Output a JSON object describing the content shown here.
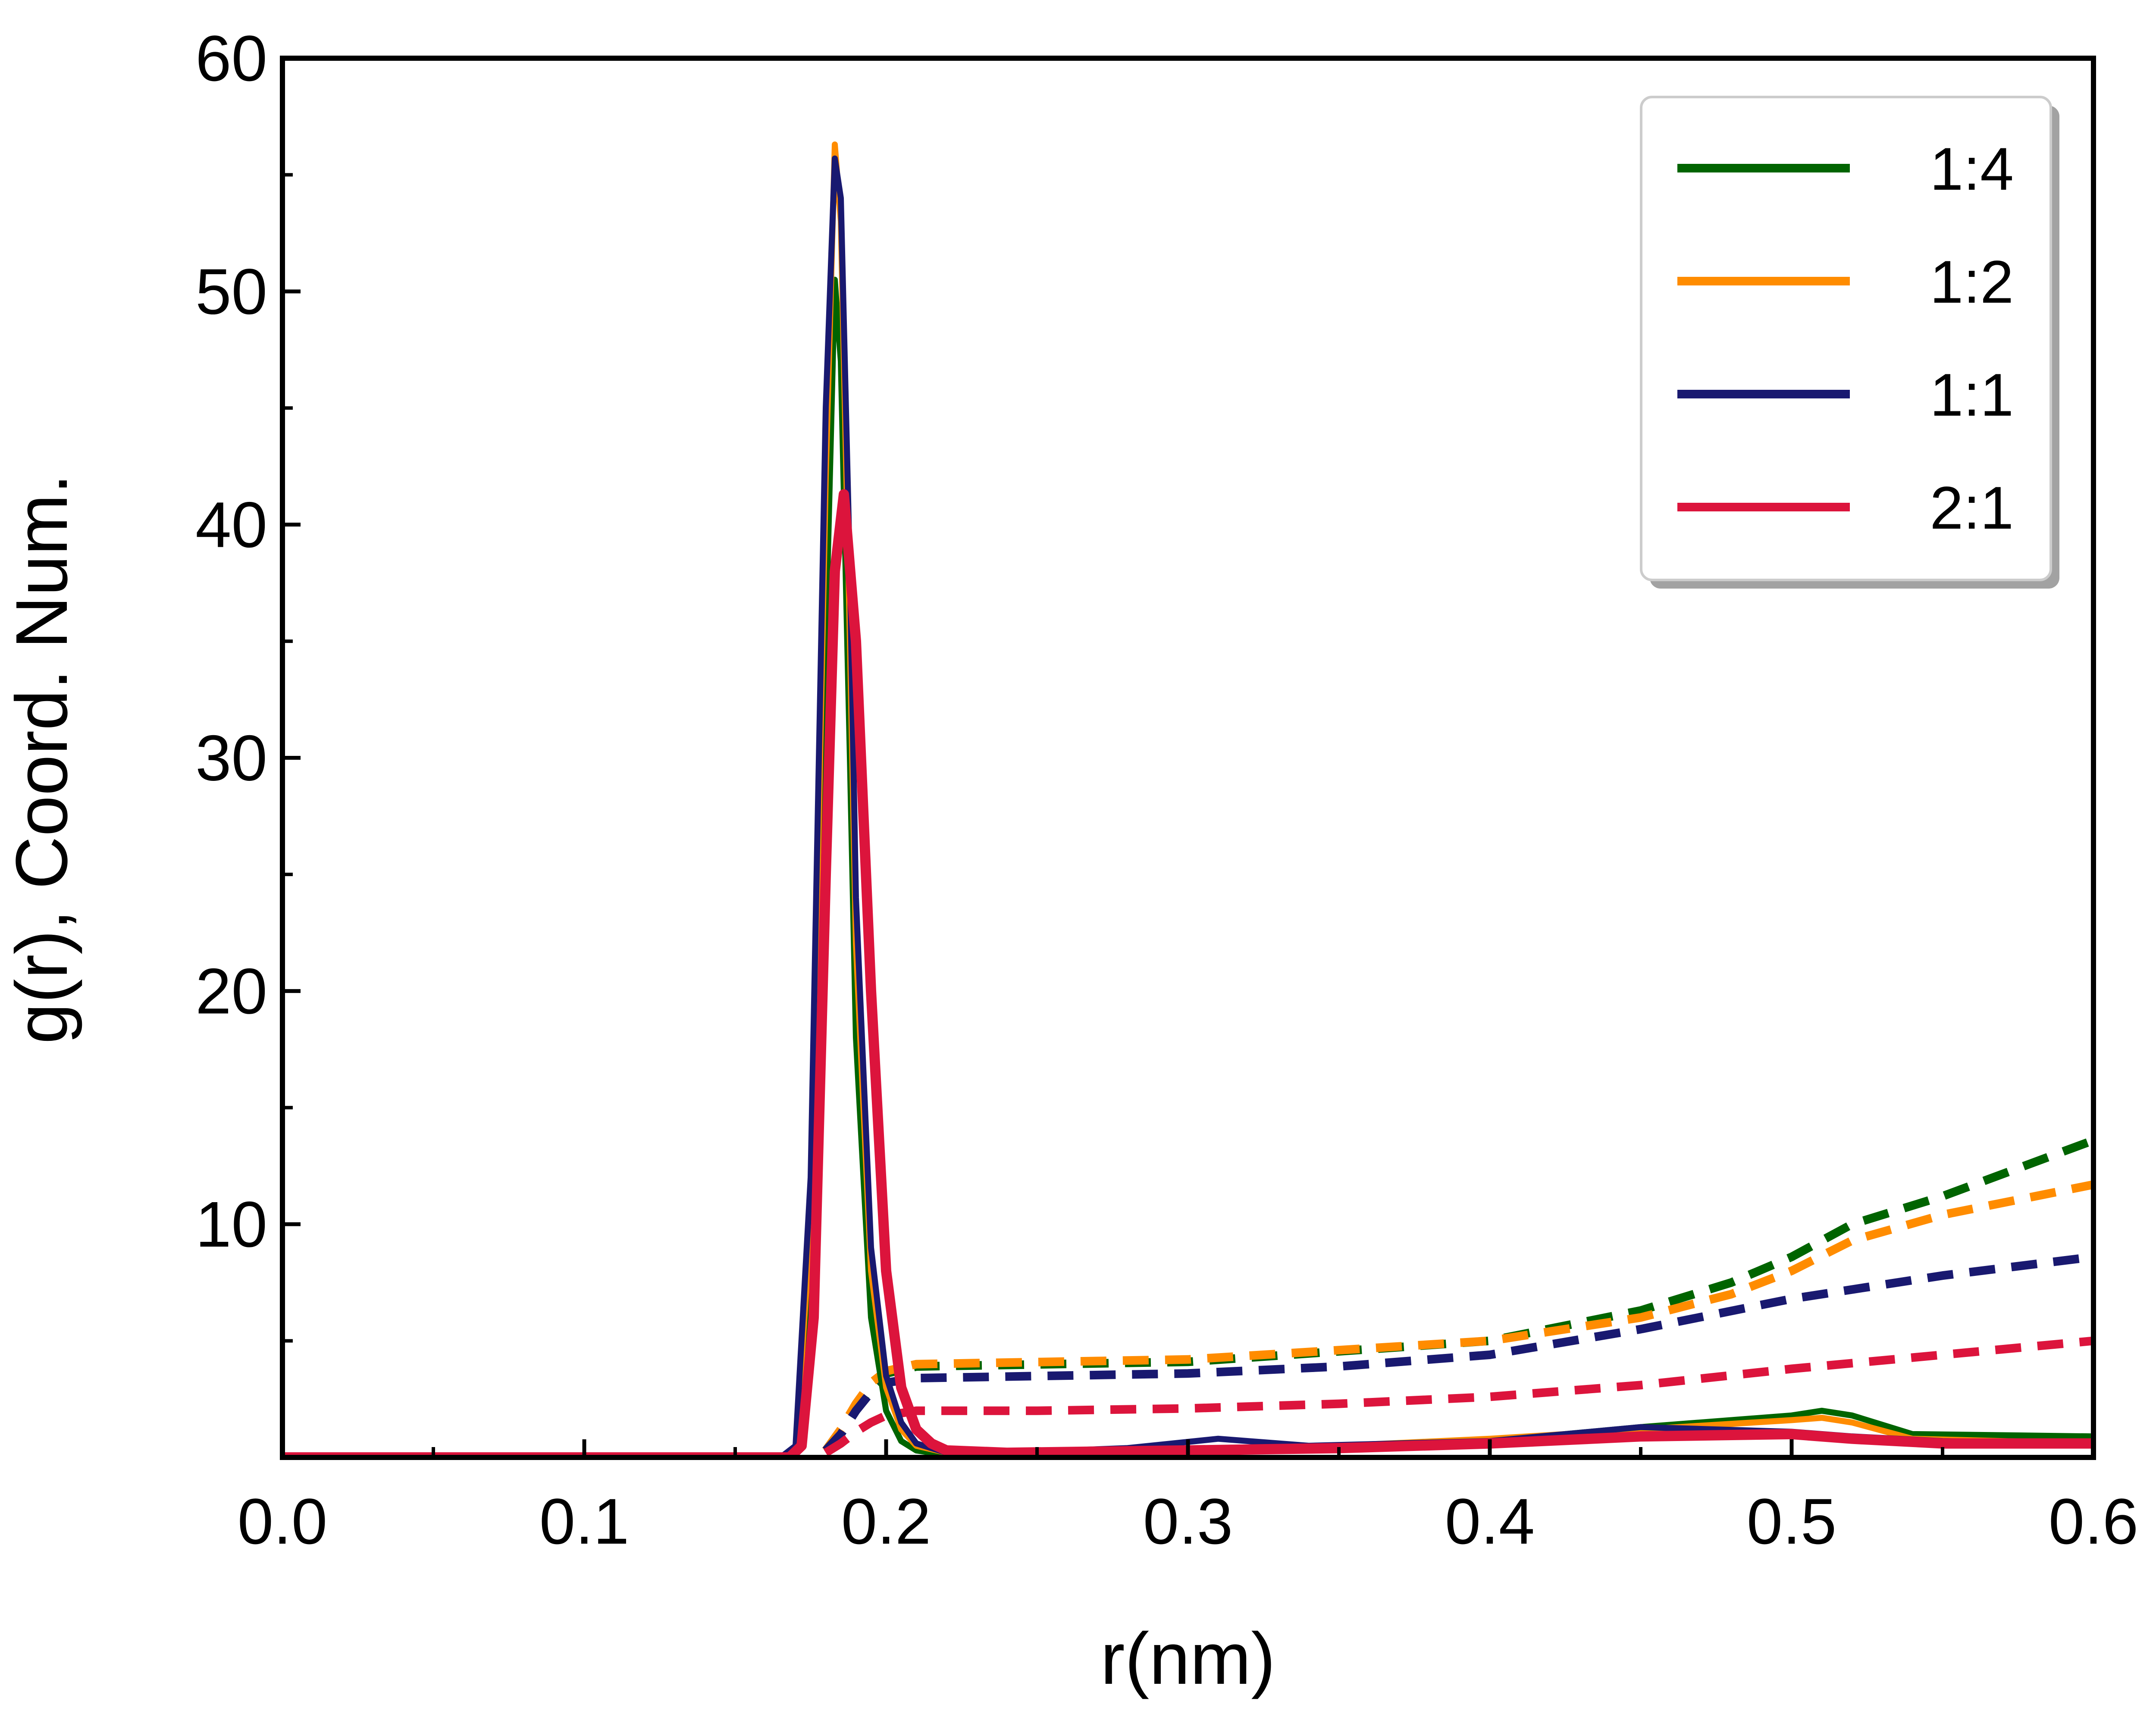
{
  "chart_data": {
    "type": "line",
    "title": "",
    "xlabel": "r(nm)",
    "ylabel": "g(r), Coord. Num.",
    "xlim": [
      0.0,
      0.6
    ],
    "ylim": [
      0,
      60
    ],
    "x_ticks": [
      0.0,
      0.1,
      0.2,
      0.3,
      0.4,
      0.5,
      0.6
    ],
    "x_tick_labels": [
      "0.0",
      "0.1",
      "0.2",
      "0.3",
      "0.4",
      "0.5",
      "0.6"
    ],
    "y_ticks": [
      10,
      20,
      30,
      40,
      50,
      60
    ],
    "y_tick_labels": [
      "10",
      "20",
      "30",
      "40",
      "50",
      "60"
    ],
    "grid": false,
    "legend_position": "top-right",
    "series": [
      {
        "name": "1:4",
        "color": "#006400",
        "rdf": {
          "x": [
            0.0,
            0.165,
            0.17,
            0.175,
            0.18,
            0.183,
            0.185,
            0.188,
            0.19,
            0.195,
            0.2,
            0.205,
            0.21,
            0.22,
            0.24,
            0.3,
            0.35,
            0.4,
            0.45,
            0.5,
            0.51,
            0.52,
            0.54,
            0.6
          ],
          "y": [
            0,
            0,
            0.3,
            8,
            35,
            50.5,
            47,
            30,
            18,
            6,
            2,
            0.7,
            0.3,
            0.1,
            0.2,
            0.3,
            0.4,
            0.7,
            1.3,
            1.8,
            2.0,
            1.8,
            1.0,
            0.9
          ]
        },
        "coord": {
          "x": [
            0.18,
            0.185,
            0.19,
            0.195,
            0.2,
            0.21,
            0.3,
            0.4,
            0.45,
            0.48,
            0.5,
            0.52,
            0.55,
            0.6
          ],
          "y": [
            0.3,
            1.0,
            2.0,
            3.0,
            3.6,
            3.9,
            4.1,
            5.0,
            6.3,
            7.5,
            8.6,
            10.0,
            11.2,
            13.6
          ]
        }
      },
      {
        "name": "1:2",
        "color": "#FF8C00",
        "rdf": {
          "x": [
            0.0,
            0.165,
            0.17,
            0.175,
            0.18,
            0.183,
            0.185,
            0.188,
            0.19,
            0.195,
            0.2,
            0.205,
            0.21,
            0.22,
            0.24,
            0.3,
            0.35,
            0.4,
            0.45,
            0.5,
            0.51,
            0.52,
            0.54,
            0.6
          ],
          "y": [
            0,
            0,
            0.3,
            10,
            42,
            56.3,
            53,
            35,
            22,
            8,
            3,
            1.2,
            0.5,
            0.2,
            0.2,
            0.3,
            0.5,
            0.8,
            1.2,
            1.6,
            1.7,
            1.5,
            0.8,
            0.6
          ]
        },
        "coord": {
          "x": [
            0.18,
            0.185,
            0.19,
            0.195,
            0.2,
            0.21,
            0.3,
            0.4,
            0.45,
            0.48,
            0.5,
            0.52,
            0.55,
            0.6
          ],
          "y": [
            0.3,
            1.2,
            2.3,
            3.2,
            3.7,
            4.0,
            4.2,
            5.0,
            6.0,
            7.0,
            8.0,
            9.3,
            10.4,
            11.7
          ]
        }
      },
      {
        "name": "1:1",
        "color": "#191970",
        "rdf": {
          "x": [
            0.0,
            0.165,
            0.17,
            0.175,
            0.18,
            0.183,
            0.185,
            0.188,
            0.19,
            0.195,
            0.2,
            0.205,
            0.21,
            0.22,
            0.24,
            0.28,
            0.31,
            0.34,
            0.4,
            0.45,
            0.5,
            0.52,
            0.55,
            0.6
          ],
          "y": [
            0,
            0,
            0.5,
            12,
            45,
            55.7,
            54,
            38,
            24,
            9,
            3.5,
            1.5,
            0.6,
            0.2,
            0.2,
            0.4,
            0.8,
            0.5,
            0.7,
            1.3,
            1.1,
            0.9,
            0.7,
            0.6
          ]
        },
        "coord": {
          "x": [
            0.18,
            0.185,
            0.19,
            0.195,
            0.2,
            0.21,
            0.3,
            0.35,
            0.4,
            0.45,
            0.5,
            0.52,
            0.55,
            0.6
          ],
          "y": [
            0.3,
            1.0,
            2.0,
            2.8,
            3.2,
            3.4,
            3.6,
            3.9,
            4.4,
            5.5,
            6.8,
            7.2,
            7.8,
            8.6
          ]
        }
      },
      {
        "name": "2:1",
        "color": "#DC143C",
        "rdf": {
          "x": [
            0.0,
            0.168,
            0.172,
            0.176,
            0.18,
            0.183,
            0.186,
            0.19,
            0.195,
            0.2,
            0.205,
            0.21,
            0.215,
            0.22,
            0.24,
            0.3,
            0.35,
            0.4,
            0.45,
            0.5,
            0.52,
            0.55,
            0.6
          ],
          "y": [
            0,
            0,
            0.5,
            6,
            25,
            38,
            41.3,
            35,
            20,
            8,
            3,
            1.2,
            0.6,
            0.3,
            0.2,
            0.3,
            0.4,
            0.6,
            0.9,
            1.0,
            0.8,
            0.6,
            0.6
          ]
        },
        "coord": {
          "x": [
            0.18,
            0.185,
            0.19,
            0.195,
            0.2,
            0.21,
            0.25,
            0.3,
            0.35,
            0.4,
            0.45,
            0.5,
            0.55,
            0.6
          ],
          "y": [
            0.2,
            0.6,
            1.1,
            1.5,
            1.8,
            2.0,
            2.0,
            2.1,
            2.3,
            2.6,
            3.1,
            3.8,
            4.4,
            5.0
          ]
        }
      }
    ]
  }
}
